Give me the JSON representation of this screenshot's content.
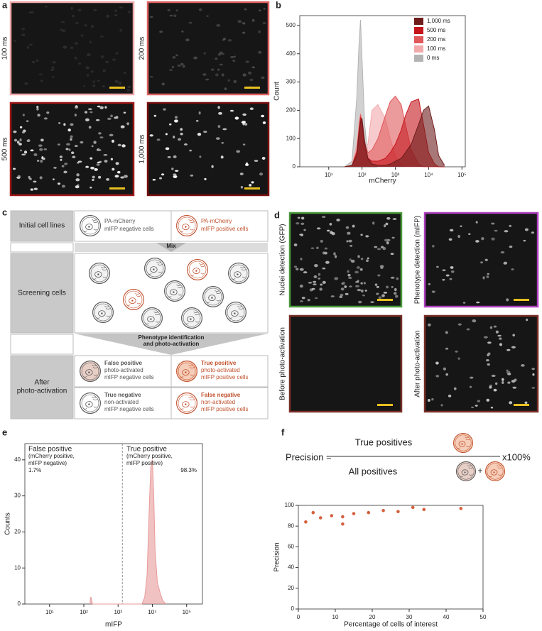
{
  "panel_a": {
    "letter": "a",
    "images": [
      "100 ms",
      "200 ms",
      "500 ms",
      "1,000 ms"
    ]
  },
  "panel_c": {
    "letter": "c",
    "row_initial": "Initial cell lines",
    "row_screening": "Screening cells",
    "row_after": [
      "After",
      "photo-activation"
    ],
    "initial": [
      [
        "PA-mCherry",
        "mIFP negative cells"
      ],
      [
        "PA-mCherry",
        "mIFP positive cells"
      ]
    ],
    "mix": "Mix",
    "step": [
      "Phenotype identification",
      "and photo-activation"
    ],
    "outcomes": [
      [
        "False positive",
        "photo-activated",
        "mIFP negative cells"
      ],
      [
        "True positive",
        "photo-activated",
        "mIFP positive cells"
      ],
      [
        "True negative",
        "non-activated",
        "mIFP negative cells"
      ],
      [
        "False negative",
        "non-activated",
        "mIFP positive cells"
      ]
    ]
  },
  "panel_d": {
    "letter": "d",
    "images": [
      "Nuclei detection (GFP)",
      "Phenotype detection (mIFP)",
      "Before photo-activation",
      "After photo-activation"
    ]
  },
  "chart_data": [
    {
      "type": "area",
      "panel": "b",
      "xlabel": "mCherry",
      "ylabel": "Count",
      "x_scale": "log",
      "xlim": [
        1.35,
        126000
      ],
      "ylim": [
        0,
        535
      ],
      "xticks": [
        {
          "value": 10,
          "label": "10¹"
        },
        {
          "value": 100,
          "label": "10²"
        },
        {
          "value": 1000,
          "label": "10³"
        },
        {
          "value": 10000,
          "label": "10⁴"
        },
        {
          "value": 100000,
          "label": "10⁵"
        }
      ],
      "yticks": [
        0,
        100,
        200,
        300,
        400,
        500
      ],
      "legend": "upper right",
      "x": [
        30,
        50,
        70,
        80,
        90,
        100,
        120,
        150,
        200,
        300,
        500,
        700,
        1000,
        1500,
        2000,
        3000,
        5000,
        7000,
        10000,
        15000,
        20000,
        30000
      ],
      "series": [
        {
          "name": "1,000 ms",
          "color": "#6e1c1c",
          "values": [
            0,
            5,
            40,
            110,
            160,
            170,
            90,
            30,
            10,
            5,
            5,
            10,
            20,
            30,
            50,
            80,
            150,
            200,
            215,
            130,
            40,
            5
          ]
        },
        {
          "name": "500 ms",
          "color": "#c4161c",
          "values": [
            0,
            5,
            50,
            120,
            175,
            150,
            70,
            30,
            20,
            20,
            30,
            50,
            80,
            130,
            180,
            230,
            240,
            150,
            50,
            10,
            0,
            0
          ]
        },
        {
          "name": "200 ms",
          "color": "#e0585a",
          "values": [
            0,
            5,
            60,
            130,
            185,
            160,
            80,
            50,
            60,
            100,
            180,
            230,
            250,
            220,
            150,
            60,
            10,
            0,
            0,
            0,
            0,
            0
          ]
        },
        {
          "name": "100 ms",
          "color": "#f2a9ab",
          "values": [
            0,
            5,
            80,
            150,
            190,
            150,
            60,
            80,
            200,
            220,
            170,
            100,
            40,
            10,
            0,
            0,
            0,
            0,
            0,
            0,
            0,
            0
          ]
        },
        {
          "name": "0 ms",
          "color": "#b3b3b3",
          "values": [
            0,
            20,
            250,
            420,
            520,
            380,
            150,
            40,
            5,
            0,
            0,
            0,
            0,
            0,
            0,
            0,
            0,
            0,
            0,
            0,
            0,
            0
          ]
        }
      ]
    },
    {
      "type": "area",
      "panel": "e",
      "xlabel": "mIFP",
      "ylabel": "Counts",
      "x_scale": "log",
      "xlim": [
        1.9,
        290000
      ],
      "ylim": [
        0,
        44.5
      ],
      "xticks": [
        {
          "value": 10,
          "label": "10¹"
        },
        {
          "value": 100,
          "label": "10²"
        },
        {
          "value": 1000,
          "label": "10³"
        },
        {
          "value": 10000,
          "label": "10⁴"
        },
        {
          "value": 100000,
          "label": "10⁵"
        }
      ],
      "yticks": [
        0,
        10,
        20,
        30,
        40
      ],
      "threshold": 1330,
      "x": [
        150,
        160,
        180,
        5000,
        6000,
        7000,
        8000,
        9000,
        10000,
        11000,
        12000,
        14000,
        17000,
        20000,
        25000
      ],
      "series": [
        {
          "color": "#e89a9a",
          "values": [
            0,
            2,
            0,
            0,
            2,
            8,
            25,
            38,
            40,
            30,
            15,
            6,
            3,
            1,
            0
          ]
        }
      ],
      "annotations": [
        [
          "False positive",
          "(mCherry positive,",
          "mIFP negative)",
          "1.7%"
        ],
        [
          "True positive",
          "(mCherry positive,",
          "mIFP positive)",
          "98.3%"
        ]
      ]
    },
    {
      "type": "scatter",
      "panel": "f",
      "xlabel": "Percentage of cells of interest",
      "ylabel": "Precision",
      "xlim": [
        0,
        50
      ],
      "ylim": [
        0,
        100
      ],
      "xticks": [
        0,
        10,
        20,
        30,
        40,
        50
      ],
      "yticks": [
        0,
        20,
        40,
        60,
        80,
        100
      ],
      "color": "#d4603e",
      "x": [
        2,
        4,
        6,
        9,
        12,
        12,
        15,
        19,
        23,
        27,
        31,
        34,
        44
      ],
      "values": [
        84,
        93,
        88,
        90,
        82,
        89,
        92,
        93,
        95,
        94,
        98,
        96,
        97
      ],
      "formula": {
        "left": "Precision =",
        "numerator": "True positives",
        "denominator": "All positives",
        "plus": "+",
        "factor": "x100%"
      }
    }
  ]
}
